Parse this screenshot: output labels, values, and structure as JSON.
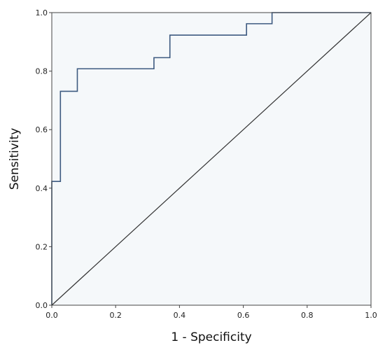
{
  "chart_data": {
    "type": "line",
    "xlabel": "1 - Specificity",
    "ylabel": "Sensitivity",
    "xlim": [
      0.0,
      1.0
    ],
    "ylim": [
      0.0,
      1.0
    ],
    "xticks": [
      "0.0",
      "0.2",
      "0.4",
      "0.6",
      "0.8",
      "1.0"
    ],
    "yticks": [
      "0.0",
      "0.2",
      "0.4",
      "0.6",
      "0.8",
      "1.0"
    ],
    "grid": false,
    "series": [
      {
        "color": "#3d5a80",
        "x": [
          0.0,
          0.0,
          0.027,
          0.027,
          0.08,
          0.08,
          0.32,
          0.32,
          0.37,
          0.37,
          0.61,
          0.61,
          0.69,
          0.69,
          1.0
        ],
        "y": [
          0.0,
          0.423,
          0.423,
          0.731,
          0.731,
          0.808,
          0.808,
          0.846,
          0.846,
          0.923,
          0.923,
          0.962,
          0.962,
          1.0,
          1.0
        ]
      },
      {
        "color": "#333333",
        "x": [
          0.0,
          1.0
        ],
        "y": [
          0.0,
          1.0
        ]
      }
    ]
  }
}
